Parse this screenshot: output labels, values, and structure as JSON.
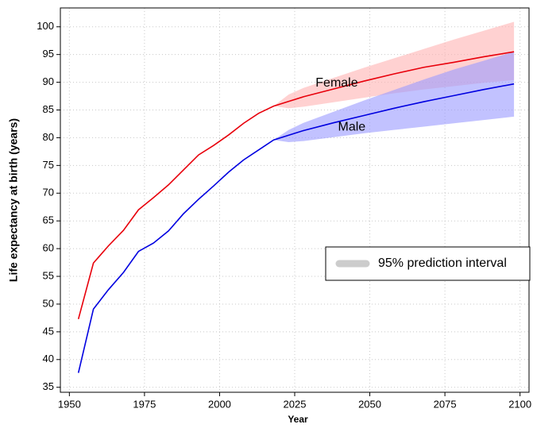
{
  "chart_data": {
    "type": "line",
    "x_label": "Year",
    "y_label": "Life expectancy at birth (years)",
    "x": [
      1953,
      1958,
      1963,
      1968,
      1973,
      1978,
      1983,
      1988,
      1993,
      1998,
      2003,
      2008,
      2013,
      2018,
      2028,
      2038,
      2048,
      2058,
      2068,
      2078,
      2088,
      2098
    ],
    "series": [
      {
        "name": "Female",
        "color": "#e8000b",
        "values": [
          47.3,
          57.4,
          60.5,
          63.3,
          67.0,
          69.2,
          71.5,
          74.2,
          76.9,
          78.6,
          80.5,
          82.6,
          84.4,
          85.7,
          87.4,
          88.8,
          90.2,
          91.5,
          92.7,
          93.6,
          94.6,
          95.5
        ]
      },
      {
        "name": "Male",
        "color": "#0000e0",
        "values": [
          37.6,
          49.1,
          52.6,
          55.7,
          59.5,
          61.0,
          63.2,
          66.3,
          68.9,
          71.3,
          73.8,
          76.0,
          77.8,
          79.6,
          81.3,
          82.7,
          84.0,
          85.3,
          86.5,
          87.6,
          88.7,
          89.7
        ]
      }
    ],
    "band_label": "95% prediction interval",
    "band_legend_color": "#cccccc",
    "band_x": [
      2018,
      2023,
      2028,
      2038,
      2048,
      2058,
      2068,
      2078,
      2088,
      2098
    ],
    "bands": [
      {
        "color": "#ffb3b3",
        "lower": [
          85.7,
          85.3,
          85.6,
          86.4,
          87.2,
          88.0,
          88.7,
          89.3,
          89.9,
          90.4
        ],
        "upper": [
          85.7,
          87.8,
          89.0,
          90.8,
          92.6,
          94.3,
          96.0,
          97.7,
          99.3,
          100.9
        ]
      },
      {
        "color": "#9999ff",
        "lower": [
          79.6,
          79.2,
          79.4,
          80.1,
          80.8,
          81.4,
          82.0,
          82.6,
          83.2,
          83.8
        ],
        "upper": [
          79.6,
          81.4,
          82.7,
          84.7,
          86.7,
          88.6,
          90.5,
          92.3,
          93.9,
          95.5
        ]
      }
    ],
    "annotations": [
      {
        "text": "Female",
        "x": 2039,
        "y": 89.8
      },
      {
        "text": "Male",
        "x": 2044,
        "y": 81.9
      }
    ],
    "xlim": [
      1947,
      2103
    ],
    "ylim": [
      34.1,
      103.4
    ],
    "xticks": [
      1950,
      1975,
      2000,
      2025,
      2050,
      2075,
      2100
    ],
    "yticks": [
      35,
      40,
      45,
      50,
      55,
      60,
      65,
      70,
      75,
      80,
      85,
      90,
      95,
      100
    ],
    "grid": true
  }
}
